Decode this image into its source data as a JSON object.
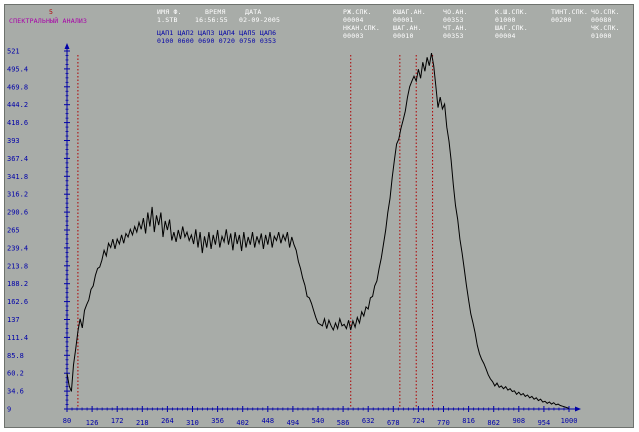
{
  "app": {
    "mode_number": "5",
    "mode_title": "СПЕКТРАЛЬНЫЙ АНАЛИЗ"
  },
  "file_info": {
    "name_label": "ИМЯ Ф.",
    "name_value": "1.STB",
    "time_label": "ВРЕМЯ",
    "time_value": "16:56:55",
    "date_label": "ДАТА",
    "date_value": "02-09-2005"
  },
  "dac": {
    "labels": "ЦАП1 ЦАП2 ЦАП3 ЦАП4 ЦАП5 ЦАП6",
    "values": "0100 0600 0690 0720 0750 0353"
  },
  "params": {
    "row1": [
      {
        "label": "РЖ.СПК.",
        "value": "00004"
      },
      {
        "label": "КШАГ.АН.",
        "value": "00001"
      },
      {
        "label": "ЧО.АН.",
        "value": "00353"
      },
      {
        "label": "К.Ш.СПК.",
        "value": "01000"
      },
      {
        "label": "ТИНТ.СПК.",
        "value": "00200"
      },
      {
        "label": "ЧО.СПК.",
        "value": "00080"
      }
    ],
    "row2": [
      {
        "label": "НКАН.СПК.",
        "value": "00003"
      },
      {
        "label": "ШАГ.АН.",
        "value": "00010"
      },
      {
        "label": "ЧТ.АН.",
        "value": "00353"
      },
      {
        "label": "ШАГ.СПК.",
        "value": "00004"
      },
      {
        "label": "ЧК.СПК.",
        "value": "01000"
      }
    ]
  },
  "colors": {
    "background": "#a8aca8",
    "trace": "#000000",
    "axis_text": "#0000a8",
    "marker": "#b00000",
    "title": "#a800a8"
  },
  "chart_data": {
    "type": "line",
    "title": "",
    "xlabel": "",
    "ylabel": "",
    "xlim": [
      80,
      1000
    ],
    "ylim": [
      9,
      521
    ],
    "grid": false,
    "y_ticks": [
      "521",
      "495.4",
      "469.8",
      "444.2",
      "418.6",
      "393",
      "367.4",
      "341.8",
      "316.2",
      "290.6",
      "265",
      "239.4",
      "213.8",
      "188.2",
      "162.6",
      "137",
      "111.4",
      "85.8",
      "60.2",
      "34.6",
      "9"
    ],
    "x_ticks": [
      "80",
      "126",
      "172",
      "218",
      "264",
      "310",
      "356",
      "402",
      "448",
      "494",
      "540",
      "586",
      "632",
      "678",
      "724",
      "770",
      "816",
      "862",
      "908",
      "954",
      "1000"
    ],
    "markers_x": [
      100,
      600,
      690,
      720,
      750
    ],
    "series": [
      {
        "values": [
          [
            80,
            60
          ],
          [
            84,
            42
          ],
          [
            88,
            34
          ],
          [
            92,
            72
          ],
          [
            96,
            95
          ],
          [
            100,
            120
          ],
          [
            104,
            138
          ],
          [
            108,
            125
          ],
          [
            112,
            150
          ],
          [
            116,
            158
          ],
          [
            120,
            165
          ],
          [
            124,
            180
          ],
          [
            128,
            185
          ],
          [
            132,
            200
          ],
          [
            136,
            210
          ],
          [
            140,
            212
          ],
          [
            144,
            222
          ],
          [
            148,
            236
          ],
          [
            152,
            228
          ],
          [
            156,
            246
          ],
          [
            160,
            240
          ],
          [
            164,
            252
          ],
          [
            168,
            238
          ],
          [
            172,
            252
          ],
          [
            176,
            245
          ],
          [
            180,
            258
          ],
          [
            184,
            246
          ],
          [
            188,
            260
          ],
          [
            192,
            255
          ],
          [
            196,
            266
          ],
          [
            200,
            258
          ],
          [
            204,
            270
          ],
          [
            208,
            262
          ],
          [
            212,
            276
          ],
          [
            216,
            266
          ],
          [
            220,
            282
          ],
          [
            224,
            260
          ],
          [
            228,
            290
          ],
          [
            232,
            270
          ],
          [
            236,
            298
          ],
          [
            240,
            262
          ],
          [
            244,
            286
          ],
          [
            248,
            272
          ],
          [
            252,
            290
          ],
          [
            256,
            255
          ],
          [
            260,
            278
          ],
          [
            264,
            265
          ],
          [
            268,
            280
          ],
          [
            272,
            250
          ],
          [
            276,
            262
          ],
          [
            280,
            248
          ],
          [
            284,
            265
          ],
          [
            288,
            252
          ],
          [
            292,
            270
          ],
          [
            296,
            255
          ],
          [
            300,
            262
          ],
          [
            304,
            250
          ],
          [
            308,
            258
          ],
          [
            312,
            245
          ],
          [
            316,
            266
          ],
          [
            320,
            240
          ],
          [
            324,
            262
          ],
          [
            328,
            232
          ],
          [
            332,
            256
          ],
          [
            336,
            240
          ],
          [
            340,
            262
          ],
          [
            344,
            238
          ],
          [
            348,
            258
          ],
          [
            352,
            244
          ],
          [
            356,
            265
          ],
          [
            360,
            240
          ],
          [
            364,
            256
          ],
          [
            368,
            248
          ],
          [
            372,
            266
          ],
          [
            376,
            244
          ],
          [
            380,
            260
          ],
          [
            384,
            236
          ],
          [
            388,
            262
          ],
          [
            392,
            245
          ],
          [
            396,
            258
          ],
          [
            400,
            235
          ],
          [
            404,
            262
          ],
          [
            408,
            240
          ],
          [
            412,
            255
          ],
          [
            416,
            244
          ],
          [
            420,
            262
          ],
          [
            424,
            240
          ],
          [
            428,
            256
          ],
          [
            432,
            246
          ],
          [
            436,
            260
          ],
          [
            440,
            238
          ],
          [
            444,
            258
          ],
          [
            448,
            244
          ],
          [
            452,
            262
          ],
          [
            456,
            240
          ],
          [
            460,
            256
          ],
          [
            464,
            250
          ],
          [
            468,
            262
          ],
          [
            472,
            246
          ],
          [
            476,
            258
          ],
          [
            480,
            250
          ],
          [
            484,
            262
          ],
          [
            488,
            240
          ],
          [
            492,
            255
          ],
          [
            496,
            244
          ],
          [
            500,
            236
          ],
          [
            504,
            220
          ],
          [
            508,
            210
          ],
          [
            512,
            196
          ],
          [
            516,
            186
          ],
          [
            520,
            170
          ],
          [
            524,
            168
          ],
          [
            528,
            160
          ],
          [
            532,
            150
          ],
          [
            536,
            140
          ],
          [
            540,
            132
          ],
          [
            544,
            130
          ],
          [
            548,
            128
          ],
          [
            552,
            138
          ],
          [
            556,
            124
          ],
          [
            560,
            136
          ],
          [
            564,
            128
          ],
          [
            568,
            122
          ],
          [
            572,
            132
          ],
          [
            576,
            124
          ],
          [
            580,
            138
          ],
          [
            584,
            128
          ],
          [
            588,
            130
          ],
          [
            592,
            124
          ],
          [
            596,
            136
          ],
          [
            600,
            122
          ],
          [
            604,
            135
          ],
          [
            608,
            126
          ],
          [
            612,
            140
          ],
          [
            616,
            132
          ],
          [
            620,
            148
          ],
          [
            624,
            142
          ],
          [
            628,
            155
          ],
          [
            632,
            152
          ],
          [
            636,
            168
          ],
          [
            640,
            170
          ],
          [
            644,
            185
          ],
          [
            648,
            192
          ],
          [
            652,
            210
          ],
          [
            656,
            225
          ],
          [
            660,
            245
          ],
          [
            664,
            265
          ],
          [
            668,
            290
          ],
          [
            672,
            310
          ],
          [
            676,
            340
          ],
          [
            680,
            365
          ],
          [
            684,
            388
          ],
          [
            688,
            395
          ],
          [
            692,
            410
          ],
          [
            696,
            422
          ],
          [
            700,
            435
          ],
          [
            704,
            455
          ],
          [
            708,
            470
          ],
          [
            712,
            478
          ],
          [
            716,
            485
          ],
          [
            720,
            478
          ],
          [
            724,
            495
          ],
          [
            728,
            482
          ],
          [
            732,
            505
          ],
          [
            736,
            492
          ],
          [
            740,
            512
          ],
          [
            744,
            500
          ],
          [
            748,
            518
          ],
          [
            752,
            500
          ],
          [
            756,
            470
          ],
          [
            760,
            440
          ],
          [
            764,
            455
          ],
          [
            768,
            438
          ],
          [
            772,
            445
          ],
          [
            776,
            412
          ],
          [
            780,
            392
          ],
          [
            784,
            365
          ],
          [
            788,
            330
          ],
          [
            792,
            300
          ],
          [
            796,
            280
          ],
          [
            800,
            252
          ],
          [
            804,
            232
          ],
          [
            808,
            210
          ],
          [
            812,
            186
          ],
          [
            816,
            165
          ],
          [
            820,
            145
          ],
          [
            824,
            132
          ],
          [
            828,
            118
          ],
          [
            832,
            100
          ],
          [
            836,
            88
          ],
          [
            840,
            80
          ],
          [
            844,
            74
          ],
          [
            848,
            66
          ],
          [
            852,
            58
          ],
          [
            856,
            52
          ],
          [
            860,
            48
          ],
          [
            864,
            42
          ],
          [
            868,
            46
          ],
          [
            872,
            40
          ],
          [
            876,
            42
          ],
          [
            880,
            38
          ],
          [
            884,
            41
          ],
          [
            888,
            36
          ],
          [
            892,
            38
          ],
          [
            896,
            34
          ],
          [
            900,
            35
          ],
          [
            904,
            30
          ],
          [
            908,
            33
          ],
          [
            912,
            29
          ],
          [
            916,
            31
          ],
          [
            920,
            27
          ],
          [
            924,
            29
          ],
          [
            928,
            25
          ],
          [
            932,
            27
          ],
          [
            936,
            23
          ],
          [
            940,
            25
          ],
          [
            944,
            21
          ],
          [
            948,
            23
          ],
          [
            952,
            19
          ],
          [
            956,
            20
          ],
          [
            960,
            17
          ],
          [
            964,
            19
          ],
          [
            968,
            16
          ],
          [
            972,
            18
          ],
          [
            976,
            15
          ],
          [
            980,
            16
          ],
          [
            984,
            14
          ],
          [
            988,
            13
          ],
          [
            992,
            12
          ],
          [
            996,
            11
          ],
          [
            1000,
            10
          ]
        ]
      }
    ]
  }
}
